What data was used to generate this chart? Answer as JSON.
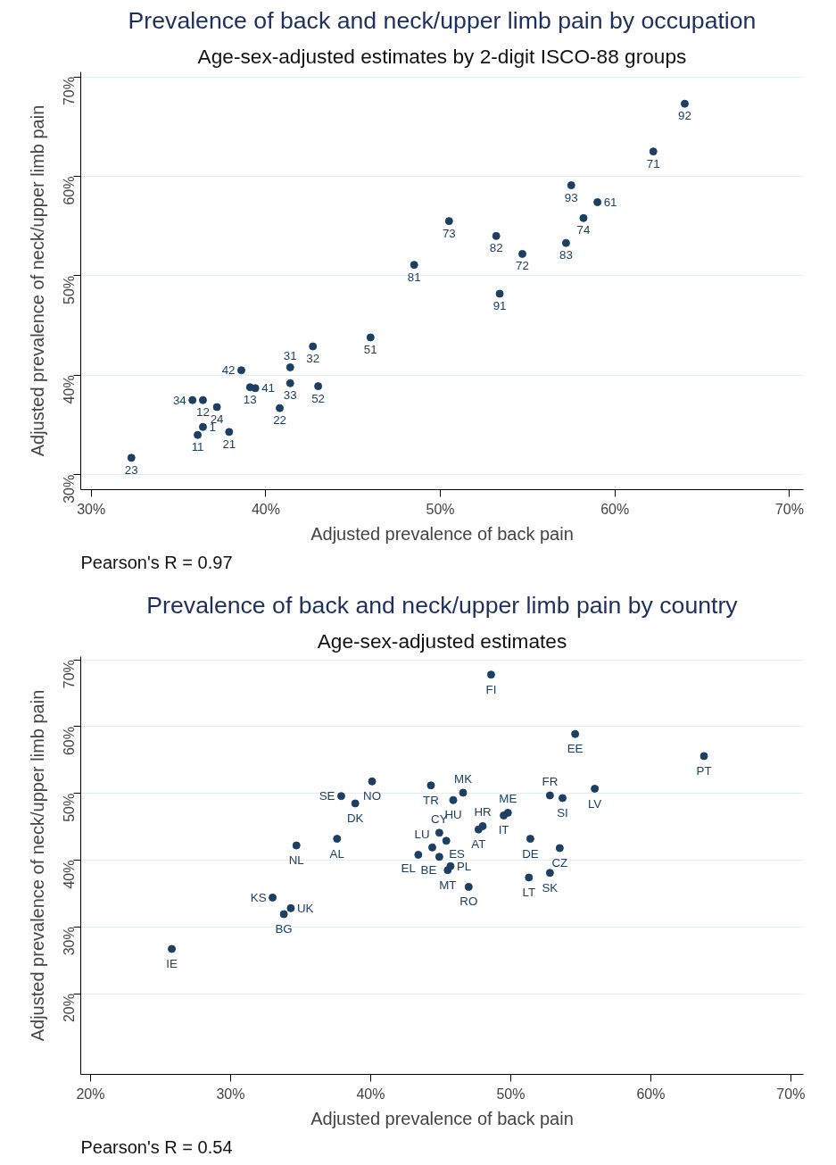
{
  "chart_data": [
    {
      "type": "scatter",
      "title": "Prevalence of back and neck/upper limb pain by occupation",
      "subtitle": "Age-sex-adjusted estimates by 2-digit ISCO-88 groups",
      "xlabel": "Adjusted prevalence of back pain",
      "ylabel": "Adjusted prevalence of neck/upper limb pain",
      "series": [
        {
          "color": "#1c3f63",
          "x": [
            64.0,
            62.2,
            57.5,
            59.0,
            58.2,
            57.2,
            50.5,
            53.2,
            54.7,
            48.5,
            53.4,
            46.0,
            42.7,
            41.4,
            38.6,
            41.4,
            43.0,
            39.1,
            39.4,
            35.8,
            36.4,
            37.2,
            40.8,
            36.4,
            36.1,
            37.9,
            32.3
          ],
          "values": [
            67.3,
            62.5,
            59.1,
            57.4,
            55.8,
            53.3,
            55.5,
            54.0,
            52.2,
            51.1,
            48.2,
            43.8,
            42.9,
            40.8,
            40.5,
            39.2,
            38.9,
            38.8,
            38.7,
            37.5,
            37.5,
            36.8,
            36.7,
            34.8,
            34.0,
            34.3,
            31.7
          ]
        }
      ],
      "annotations": [
        {
          "text": "92",
          "x": 64.0,
          "y": 67.3
        },
        {
          "text": "71",
          "x": 62.2,
          "y": 62.5
        },
        {
          "text": "93",
          "x": 57.5,
          "y": 59.1
        },
        {
          "text": "61",
          "x": 59.0,
          "y": 57.4
        },
        {
          "text": "74",
          "x": 58.2,
          "y": 55.8
        },
        {
          "text": "83",
          "x": 57.2,
          "y": 53.3
        },
        {
          "text": "73",
          "x": 50.5,
          "y": 55.5
        },
        {
          "text": "82",
          "x": 53.2,
          "y": 54.0
        },
        {
          "text": "72",
          "x": 54.7,
          "y": 52.2
        },
        {
          "text": "81",
          "x": 48.5,
          "y": 51.1
        },
        {
          "text": "91",
          "x": 53.4,
          "y": 48.2
        },
        {
          "text": "51",
          "x": 46.0,
          "y": 43.8
        },
        {
          "text": "32",
          "x": 42.7,
          "y": 42.9
        },
        {
          "text": "31",
          "x": 41.4,
          "y": 40.8
        },
        {
          "text": "42",
          "x": 38.6,
          "y": 40.5
        },
        {
          "text": "33",
          "x": 41.4,
          "y": 39.2
        },
        {
          "text": "52",
          "x": 43.0,
          "y": 38.9
        },
        {
          "text": "13",
          "x": 39.1,
          "y": 38.8
        },
        {
          "text": "41",
          "x": 39.4,
          "y": 38.7
        },
        {
          "text": "34",
          "x": 35.8,
          "y": 37.5
        },
        {
          "text": "12",
          "x": 36.4,
          "y": 37.5
        },
        {
          "text": "24",
          "x": 37.2,
          "y": 36.8
        },
        {
          "text": "22",
          "x": 40.8,
          "y": 36.7
        },
        {
          "text": "1",
          "x": 36.4,
          "y": 34.8
        },
        {
          "text": "11",
          "x": 36.1,
          "y": 34.0
        },
        {
          "text": "21",
          "x": 37.9,
          "y": 34.3
        },
        {
          "text": "23",
          "x": 32.3,
          "y": 31.7
        },
        "Pearson's R = 0.97"
      ],
      "xlim": [
        29.4,
        70.8
      ],
      "ylim": [
        28.5,
        70.5
      ],
      "xticks": [
        {
          "value": 30,
          "label": "30%"
        },
        {
          "value": 40,
          "label": "40%"
        },
        {
          "value": 50,
          "label": "50%"
        },
        {
          "value": 60,
          "label": "60%"
        },
        {
          "value": 70,
          "label": "70%"
        }
      ],
      "yticks": [
        {
          "value": 30,
          "label": "30%"
        },
        {
          "value": 40,
          "label": "40%"
        },
        {
          "value": 50,
          "label": "50%"
        },
        {
          "value": 60,
          "label": "60%"
        },
        {
          "value": 70,
          "label": "70%"
        }
      ],
      "grid": "y",
      "marker": "circle"
    },
    {
      "type": "scatter",
      "title": "Prevalence of back and neck/upper limb pain by country",
      "subtitle": "Age-sex-adjusted estimates",
      "xlabel": "Adjusted prevalence of back pain",
      "ylabel": "Adjusted prevalence of neck/upper limb pain",
      "series": [
        {
          "color": "#1c3f63",
          "x": [
            48.6,
            54.6,
            63.8,
            40.1,
            46.6,
            44.3,
            37.9,
            38.9,
            45.9,
            52.8,
            53.7,
            56.0,
            49.8,
            49.5,
            48.0,
            47.7,
            44.9,
            51.4,
            37.6,
            34.7,
            44.4,
            45.4,
            53.5,
            43.4,
            44.9,
            45.7,
            45.5,
            51.3,
            52.8,
            47.0,
            33.0,
            34.3,
            33.8,
            25.8
          ],
          "values": [
            67.8,
            58.9,
            55.6,
            51.8,
            50.1,
            51.2,
            49.6,
            48.5,
            49.0,
            49.7,
            49.3,
            50.7,
            47.1,
            46.7,
            45.1,
            44.6,
            44.1,
            43.2,
            43.2,
            42.2,
            41.9,
            42.9,
            41.8,
            40.8,
            40.5,
            39.1,
            38.5,
            37.4,
            38.1,
            36.0,
            34.4,
            32.8,
            31.9,
            26.7
          ]
        }
      ],
      "annotations": [
        {
          "text": "FI",
          "x": 48.6,
          "y": 67.8
        },
        {
          "text": "EE",
          "x": 54.6,
          "y": 58.9
        },
        {
          "text": "PT",
          "x": 63.8,
          "y": 55.6
        },
        {
          "text": "NO",
          "x": 40.1,
          "y": 51.8
        },
        {
          "text": "MK",
          "x": 46.6,
          "y": 50.1
        },
        {
          "text": "TR",
          "x": 44.3,
          "y": 51.2
        },
        {
          "text": "SE",
          "x": 37.9,
          "y": 49.6
        },
        {
          "text": "DK",
          "x": 38.9,
          "y": 48.5
        },
        {
          "text": "HU",
          "x": 45.9,
          "y": 49.0
        },
        {
          "text": "FR",
          "x": 52.8,
          "y": 49.7
        },
        {
          "text": "SI",
          "x": 53.7,
          "y": 49.3
        },
        {
          "text": "LV",
          "x": 56.0,
          "y": 50.7
        },
        {
          "text": "ME",
          "x": 49.8,
          "y": 47.1
        },
        {
          "text": "IT",
          "x": 49.5,
          "y": 46.7
        },
        {
          "text": "HR",
          "x": 48.0,
          "y": 45.1
        },
        {
          "text": "AT",
          "x": 47.7,
          "y": 44.6
        },
        {
          "text": "CY",
          "x": 44.9,
          "y": 44.1
        },
        {
          "text": "DE",
          "x": 51.4,
          "y": 43.2
        },
        {
          "text": "AL",
          "x": 37.6,
          "y": 43.2
        },
        {
          "text": "NL",
          "x": 34.7,
          "y": 42.2
        },
        {
          "text": "LU",
          "x": 44.4,
          "y": 41.9
        },
        {
          "text": "ES",
          "x": 45.4,
          "y": 42.9
        },
        {
          "text": "CZ",
          "x": 53.5,
          "y": 41.8
        },
        {
          "text": "EL",
          "x": 43.4,
          "y": 40.8
        },
        {
          "text": "BE",
          "x": 44.9,
          "y": 40.5
        },
        {
          "text": "PL",
          "x": 45.7,
          "y": 39.1
        },
        {
          "text": "MT",
          "x": 45.5,
          "y": 38.5
        },
        {
          "text": "LT",
          "x": 51.3,
          "y": 37.4
        },
        {
          "text": "SK",
          "x": 52.8,
          "y": 38.1
        },
        {
          "text": "RO",
          "x": 47.0,
          "y": 36.0
        },
        {
          "text": "KS",
          "x": 33.0,
          "y": 34.4
        },
        {
          "text": "UK",
          "x": 34.3,
          "y": 32.8
        },
        {
          "text": "BG",
          "x": 33.8,
          "y": 31.9
        },
        {
          "text": "IE",
          "x": 25.8,
          "y": 26.7
        },
        "Pearson's R = 0.54"
      ],
      "xlim": [
        19.3,
        70.9
      ],
      "ylim": [
        7.9,
        70.5
      ],
      "xticks": [
        {
          "value": 20,
          "label": "20%"
        },
        {
          "value": 30,
          "label": "30%"
        },
        {
          "value": 40,
          "label": "40%"
        },
        {
          "value": 50,
          "label": "50%"
        },
        {
          "value": 60,
          "label": "60%"
        },
        {
          "value": 70,
          "label": "70%"
        }
      ],
      "yticks": [
        {
          "value": 20,
          "label": "20%"
        },
        {
          "value": 30,
          "label": "30%"
        },
        {
          "value": 40,
          "label": "40%"
        },
        {
          "value": 50,
          "label": "50%"
        },
        {
          "value": 60,
          "label": "60%"
        },
        {
          "value": 70,
          "label": "70%"
        }
      ],
      "grid": "y",
      "marker": "circle"
    }
  ]
}
